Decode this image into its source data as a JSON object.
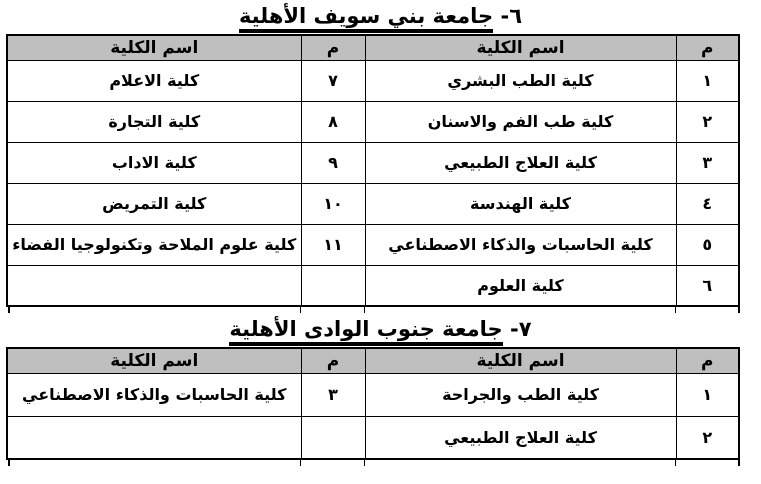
{
  "colors": {
    "page_bg": "#ffffff",
    "header_bg": "#bfbfbf",
    "border": "#000000",
    "text": "#000000"
  },
  "sections": [
    {
      "title_num": "٦-",
      "title_name": "جامعة بني سويف الأهلية",
      "header": {
        "no": "م",
        "name": "اسم الكلية"
      },
      "rows": [
        {
          "no_r": "١",
          "name_r": "كلية الطب البشري",
          "no_l": "٧",
          "name_l": "كلية الاعلام"
        },
        {
          "no_r": "٢",
          "name_r": "كلية طب الفم والاسنان",
          "no_l": "٨",
          "name_l": "كلية التجارة"
        },
        {
          "no_r": "٣",
          "name_r": "كلية العلاج الطبيعي",
          "no_l": "٩",
          "name_l": "كلية الاداب"
        },
        {
          "no_r": "٤",
          "name_r": "كلية الهندسة",
          "no_l": "١٠",
          "name_l": "كلية التمريض"
        },
        {
          "no_r": "٥",
          "name_r": "كلية الحاسبات والذكاء الاصطناعي",
          "no_l": "١١",
          "name_l": "كلية علوم الملاحة وتكنولوجيا الفضاء"
        },
        {
          "no_r": "٦",
          "name_r": "كلية العلوم",
          "no_l": "",
          "name_l": ""
        }
      ]
    },
    {
      "title_num": "٧-",
      "title_name": "جامعة جنوب الوادى الأهلية",
      "header": {
        "no": "م",
        "name": "اسم الكلية"
      },
      "rows": [
        {
          "no_r": "١",
          "name_r": "كلية الطب والجراحة",
          "no_l": "٣",
          "name_l": "كلية الحاسبات والذكاء الاصطناعي"
        },
        {
          "no_r": "٢",
          "name_r": "كلية العلاج الطبيعي",
          "no_l": "",
          "name_l": ""
        }
      ]
    }
  ]
}
